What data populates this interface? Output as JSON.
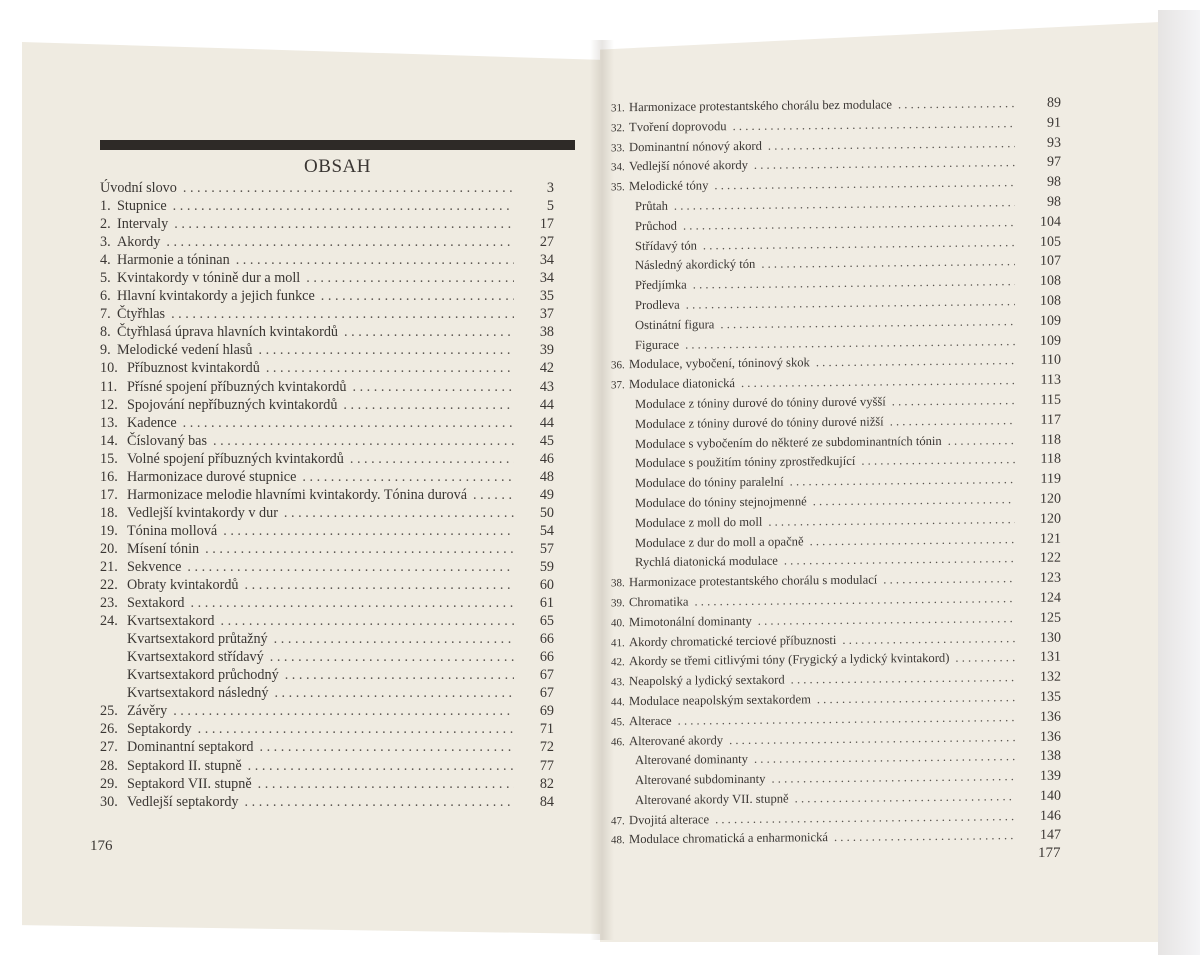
{
  "left_page": {
    "heading": "OBSAH",
    "page_number": "176",
    "entries": [
      {
        "num": "",
        "title": "Úvodní slovo",
        "page": "3"
      },
      {
        "num": "1.",
        "title": "Stupnice",
        "page": "5"
      },
      {
        "num": "2.",
        "title": "Intervaly",
        "page": "17"
      },
      {
        "num": "3.",
        "title": "Akordy",
        "page": "27"
      },
      {
        "num": "4.",
        "title": "Harmonie a tóninan",
        "page": "34"
      },
      {
        "num": "5.",
        "title": "Kvintakordy v tónině dur a moll",
        "page": "34"
      },
      {
        "num": "6.",
        "title": "Hlavní kvintakordy a jejich funkce",
        "page": "35"
      },
      {
        "num": "7.",
        "title": "Čtyřhlas",
        "page": "37"
      },
      {
        "num": "8.",
        "title": "Čtyřhlasá úprava hlavních kvintakordů",
        "page": "38"
      },
      {
        "num": "9.",
        "title": "Melodické vedení hlasů",
        "page": "39"
      },
      {
        "num": "10.",
        "title": "Příbuznost kvintakordů",
        "page": "42"
      },
      {
        "num": "11.",
        "title": "Přísné spojení příbuzných kvintakordů",
        "page": "43"
      },
      {
        "num": "12.",
        "title": "Spojování nepříbuzných kvintakordů",
        "page": "44"
      },
      {
        "num": "13.",
        "title": "Kadence",
        "page": "44"
      },
      {
        "num": "14.",
        "title": "Číslovaný bas",
        "page": "45"
      },
      {
        "num": "15.",
        "title": "Volné spojení příbuzných kvintakordů",
        "page": "46"
      },
      {
        "num": "16.",
        "title": "Harmonizace durové stupnice",
        "page": "48"
      },
      {
        "num": "17.",
        "title": "Harmonizace melodie hlavními kvintakordy. Tónina durová",
        "page": "49"
      },
      {
        "num": "18.",
        "title": "Vedlejší kvintakordy v dur",
        "page": "50"
      },
      {
        "num": "19.",
        "title": "Tónina mollová",
        "page": "54"
      },
      {
        "num": "20.",
        "title": "Mísení tónin",
        "page": "57"
      },
      {
        "num": "21.",
        "title": "Sekvence",
        "page": "59"
      },
      {
        "num": "22.",
        "title": "Obraty kvintakordů",
        "page": "60"
      },
      {
        "num": "23.",
        "title": "Sextakord",
        "page": "61"
      },
      {
        "num": "24.",
        "title": "Kvartsextakord",
        "page": "65"
      },
      {
        "num": "",
        "title": "Kvartsextakord průtažný",
        "page": "66",
        "sub": true
      },
      {
        "num": "",
        "title": "Kvartsextakord střídavý",
        "page": "66",
        "sub": true
      },
      {
        "num": "",
        "title": "Kvartsextakord průchodný",
        "page": "67",
        "sub": true
      },
      {
        "num": "",
        "title": "Kvartsextakord následný",
        "page": "67",
        "sub": true
      },
      {
        "num": "25.",
        "title": "Závěry",
        "page": "69"
      },
      {
        "num": "26.",
        "title": "Septakordy",
        "page": "71"
      },
      {
        "num": "27.",
        "title": "Dominantní septakord",
        "page": "72"
      },
      {
        "num": "28.",
        "title": "Septakord II. stupně",
        "page": "77"
      },
      {
        "num": "29.",
        "title": "Septakord VII. stupně",
        "page": "82"
      },
      {
        "num": "30.",
        "title": "Vedlejší septakordy",
        "page": "84"
      }
    ]
  },
  "right_page": {
    "page_number": "177",
    "entries": [
      {
        "num": "31.",
        "title": "Harmonizace protestantského chorálu bez modulace",
        "page": "89"
      },
      {
        "num": "32.",
        "title": "Tvoření doprovodu",
        "page": "91"
      },
      {
        "num": "33.",
        "title": "Dominantní nónový akord",
        "page": "93"
      },
      {
        "num": "34.",
        "title": "Vedlejší nónové akordy",
        "page": "97"
      },
      {
        "num": "35.",
        "title": "Melodické tóny",
        "page": "98"
      },
      {
        "num": "",
        "title": "Průtah",
        "page": "98",
        "sub": true
      },
      {
        "num": "",
        "title": "Průchod",
        "page": "104",
        "sub": true
      },
      {
        "num": "",
        "title": "Střídavý tón",
        "page": "105",
        "sub": true
      },
      {
        "num": "",
        "title": "Následný akordický tón",
        "page": "107",
        "sub": true
      },
      {
        "num": "",
        "title": "Předjímka",
        "page": "108",
        "sub": true
      },
      {
        "num": "",
        "title": "Prodleva",
        "page": "108",
        "sub": true
      },
      {
        "num": "",
        "title": "Ostinátní figura",
        "page": "109",
        "sub": true
      },
      {
        "num": "",
        "title": "Figurace",
        "page": "109",
        "sub": true
      },
      {
        "num": "36.",
        "title": "Modulace, vybočení, tóninový skok",
        "page": "110"
      },
      {
        "num": "37.",
        "title": "Modulace diatonická",
        "page": "113"
      },
      {
        "num": "",
        "title": "Modulace z tóniny durové do tóniny durové vyšší",
        "page": "115",
        "sub": true
      },
      {
        "num": "",
        "title": "Modulace z tóniny durové do tóniny durové nižší",
        "page": "117",
        "sub": true
      },
      {
        "num": "",
        "title": "Modulace s vybočením do některé ze subdominantních tónin",
        "page": "118",
        "sub": true
      },
      {
        "num": "",
        "title": "Modulace s použitím tóniny zprostředkující",
        "page": "118",
        "sub": true
      },
      {
        "num": "",
        "title": "Modulace do tóniny paralelní",
        "page": "119",
        "sub": true
      },
      {
        "num": "",
        "title": "Modulace do tóniny stejnojmenné",
        "page": "120",
        "sub": true
      },
      {
        "num": "",
        "title": "Modulace z moll do moll",
        "page": "120",
        "sub": true
      },
      {
        "num": "",
        "title": "Modulace z dur do moll a opačně",
        "page": "121",
        "sub": true
      },
      {
        "num": "",
        "title": "Rychlá diatonická modulace",
        "page": "122",
        "sub": true
      },
      {
        "num": "38.",
        "title": "Harmonizace protestantského chorálu s modulací",
        "page": "123"
      },
      {
        "num": "39.",
        "title": "Chromatika",
        "page": "124"
      },
      {
        "num": "40.",
        "title": "Mimotonální dominanty",
        "page": "125"
      },
      {
        "num": "41.",
        "title": "Akordy chromatické terciové příbuznosti",
        "page": "130"
      },
      {
        "num": "42.",
        "title": "Akordy se třemi citlivými tóny (Frygický a lydický kvintakord)",
        "page": "131"
      },
      {
        "num": "43.",
        "title": "Neapolský a lydický sextakord",
        "page": "132"
      },
      {
        "num": "44.",
        "title": "Modulace neapolským sextakordem",
        "page": "135"
      },
      {
        "num": "45.",
        "title": "Alterace",
        "page": "136"
      },
      {
        "num": "46.",
        "title": "Alterované akordy",
        "page": "136"
      },
      {
        "num": "",
        "title": "Alterované dominanty",
        "page": "138",
        "sub": true
      },
      {
        "num": "",
        "title": "Alterované subdominanty",
        "page": "139",
        "sub": true
      },
      {
        "num": "",
        "title": "Alterované akordy VII. stupně",
        "page": "140",
        "sub": true
      },
      {
        "num": "47.",
        "title": "Dvojitá alterace",
        "page": "146"
      },
      {
        "num": "48.",
        "title": "Modulace chromatická a enharmonická",
        "page": "147"
      }
    ]
  }
}
